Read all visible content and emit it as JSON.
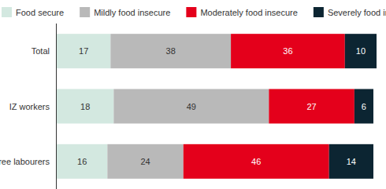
{
  "chart_data": {
    "type": "bar",
    "orientation": "horizontal",
    "stacked": true,
    "data_labels": true,
    "tick_labels": "y",
    "legend": "top",
    "categories": [
      "Total",
      "IZ workers",
      "Free labourers"
    ],
    "xlim": [
      0,
      101
    ],
    "series": [
      {
        "name": "Food secure",
        "color": "#d3e8e0",
        "values": [
          17,
          18,
          16
        ]
      },
      {
        "name": "Mildly food insecure",
        "color": "#b9b9b9",
        "values": [
          38,
          49,
          24
        ]
      },
      {
        "name": "Moderately food insecure",
        "color": "#e4001b",
        "values": [
          36,
          27,
          46
        ]
      },
      {
        "name": "Severely food insecure",
        "color": "#0c2532",
        "values": [
          10,
          6,
          14
        ]
      }
    ]
  }
}
